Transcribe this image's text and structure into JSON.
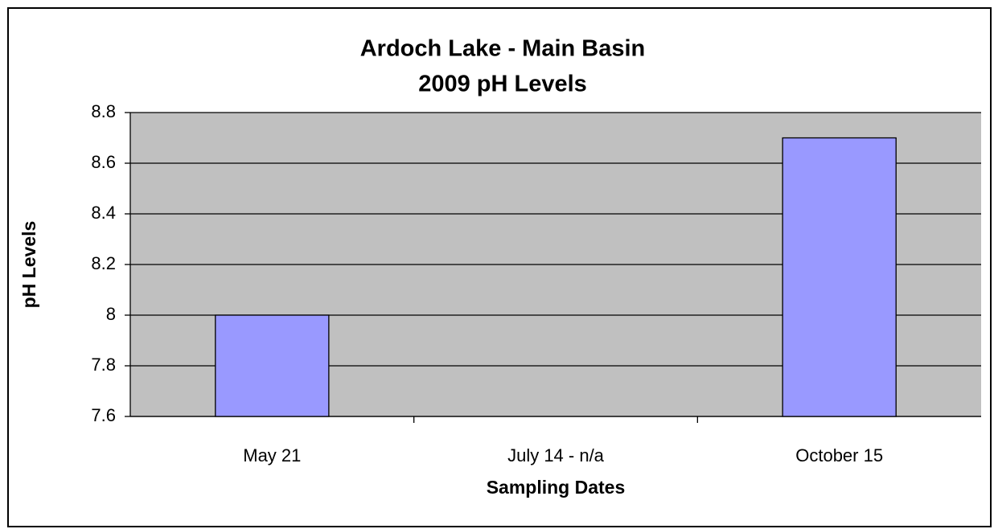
{
  "chart_data": {
    "type": "bar",
    "title": "Ardoch Lake - Main Basin",
    "subtitle": "2009 pH Levels",
    "x_label": "Sampling Dates",
    "y_label": "pH Levels",
    "categories": [
      "May 21",
      "July 14 - n/a",
      "October 15"
    ],
    "values": [
      8,
      null,
      8.7
    ],
    "color": "#9999ff",
    "ylim": [
      7.6,
      8.8
    ],
    "yticks": [
      7.6,
      7.8,
      8,
      8.2,
      8.4,
      8.6,
      8.8
    ],
    "grid": true
  }
}
